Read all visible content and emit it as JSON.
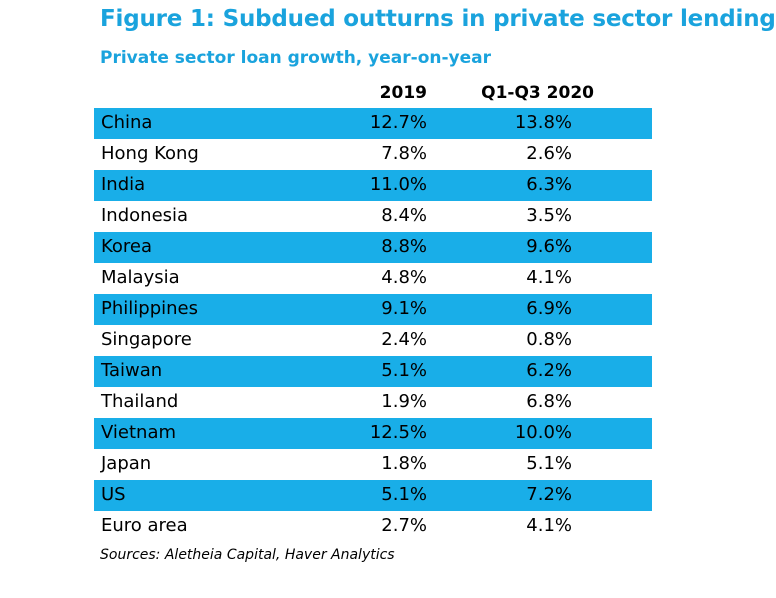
{
  "chart_data": {
    "type": "table",
    "title": "Figure 1: Subdued outturns in private sector lending",
    "subtitle": "Private sector loan growth, year-on-year",
    "columns": [
      "2019",
      "Q1-Q3 2020"
    ],
    "rows": [
      {
        "name": "China",
        "v2019": "12.7%",
        "v2020": "13.8%"
      },
      {
        "name": "Hong Kong",
        "v2019": "7.8%",
        "v2020": "2.6%"
      },
      {
        "name": "India",
        "v2019": "11.0%",
        "v2020": "6.3%"
      },
      {
        "name": "Indonesia",
        "v2019": "8.4%",
        "v2020": "3.5%"
      },
      {
        "name": "Korea",
        "v2019": "8.8%",
        "v2020": "9.6%"
      },
      {
        "name": "Malaysia",
        "v2019": "4.8%",
        "v2020": "4.1%"
      },
      {
        "name": "Philippines",
        "v2019": "9.1%",
        "v2020": "6.9%"
      },
      {
        "name": "Singapore",
        "v2019": "2.4%",
        "v2020": "0.8%"
      },
      {
        "name": "Taiwan",
        "v2019": "5.1%",
        "v2020": "6.2%"
      },
      {
        "name": "Thailand",
        "v2019": "1.9%",
        "v2020": "6.8%"
      },
      {
        "name": "Vietnam",
        "v2019": "12.5%",
        "v2020": "10.0%"
      },
      {
        "name": "Japan",
        "v2019": "1.8%",
        "v2020": "5.1%"
      },
      {
        "name": "US",
        "v2019": "5.1%",
        "v2020": "7.2%"
      },
      {
        "name": "Euro area",
        "v2019": "2.7%",
        "v2020": "4.1%"
      }
    ],
    "source": "Sources: Aletheia Capital, Haver Analytics"
  },
  "colors": {
    "accent": "#1aa3dd",
    "row_shade": "#19aee8"
  }
}
